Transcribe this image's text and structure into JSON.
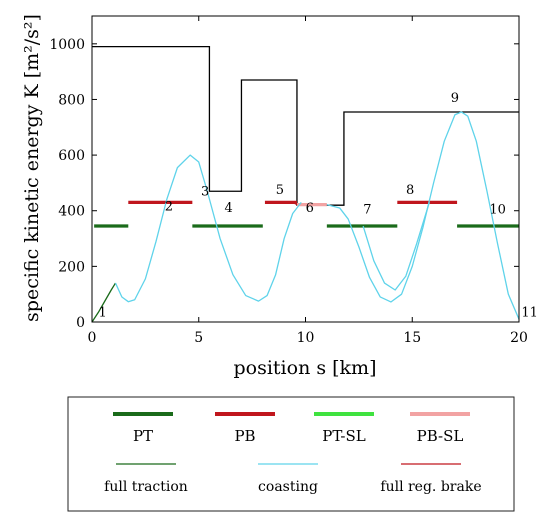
{
  "chart_data": {
    "type": "line",
    "xlabel": "position s [km]",
    "ylabel": "specific kinetic energy K [m²/s²]",
    "xlim": [
      0,
      20
    ],
    "ylim": [
      0,
      1100
    ],
    "x_ticks": [
      0,
      5,
      10,
      15,
      20
    ],
    "y_ticks": [
      0,
      200,
      400,
      600,
      800,
      1000
    ],
    "x_tick_labels": [
      "0",
      "5",
      "10",
      "15",
      "20"
    ],
    "y_tick_labels": [
      "0",
      "200",
      "400",
      "600",
      "800",
      "1000"
    ],
    "grid": false,
    "legend_placement": "below",
    "speed_limit_profile": {
      "color": "#000000",
      "points": [
        [
          0,
          990
        ],
        [
          5.5,
          990
        ],
        [
          5.5,
          470
        ],
        [
          7.0,
          470
        ],
        [
          7.0,
          870
        ],
        [
          9.6,
          870
        ],
        [
          9.6,
          420
        ],
        [
          11.8,
          420
        ],
        [
          11.8,
          755
        ],
        [
          20,
          755
        ]
      ]
    },
    "segments": [
      {
        "type": "PT",
        "color": "#1a6b1a",
        "x0": 0.1,
        "x1": 1.7,
        "y": 345
      },
      {
        "type": "PB",
        "color": "#c0161d",
        "x0": 1.7,
        "x1": 4.7,
        "y": 430
      },
      {
        "type": "PT",
        "color": "#1a6b1a",
        "x0": 4.7,
        "x1": 8.0,
        "y": 345
      },
      {
        "type": "PB",
        "color": "#c0161d",
        "x0": 8.1,
        "x1": 9.6,
        "y": 430
      },
      {
        "type": "PB-SL",
        "color": "#f2a3a3",
        "x0": 9.6,
        "x1": 11.0,
        "y": 422
      },
      {
        "type": "PT",
        "color": "#1a6b1a",
        "x0": 11.0,
        "x1": 14.3,
        "y": 345
      },
      {
        "type": "PB",
        "color": "#c0161d",
        "x0": 14.3,
        "x1": 17.1,
        "y": 430
      },
      {
        "type": "PT",
        "color": "#1a6b1a",
        "x0": 17.1,
        "x1": 20.0,
        "y": 345
      }
    ],
    "series": [
      {
        "mode": "full traction",
        "color": "#1a6b1a",
        "x": [
          0,
          0.3,
          0.6,
          0.9,
          1.1
        ],
        "y": [
          0,
          35,
          75,
          115,
          140
        ]
      },
      {
        "mode": "coasting",
        "color": "#5fd3ea",
        "x": [
          1.1,
          1.4,
          1.7,
          2.0,
          2.5,
          3.0,
          3.5,
          4.0,
          4.6,
          5.0,
          5.4,
          6.0,
          6.6,
          7.2,
          7.8,
          8.2,
          8.6,
          9.0,
          9.4,
          9.8
        ],
        "y": [
          140,
          90,
          73,
          80,
          155,
          290,
          440,
          555,
          600,
          575,
          470,
          300,
          170,
          95,
          75,
          95,
          170,
          300,
          390,
          430
        ]
      },
      {
        "mode": "coasting",
        "color": "#5fd3ea",
        "x": [
          11.0,
          11.6,
          12.0,
          12.5,
          13.0,
          13.5,
          14.0,
          14.5,
          15.0,
          15.5,
          16.0,
          16.5,
          17.0,
          17.3,
          17.6,
          18.0,
          18.5,
          19.0,
          19.5,
          20.0
        ],
        "y": [
          422,
          410,
          370,
          270,
          160,
          90,
          72,
          100,
          200,
          340,
          500,
          650,
          745,
          755,
          740,
          650,
          470,
          280,
          100,
          10
        ]
      },
      {
        "mode": "coasting",
        "color": "#5fd3ea",
        "x": [
          12.7,
          13.2,
          13.7,
          14.2,
          14.7,
          15.2,
          15.8
        ],
        "y": [
          345,
          220,
          140,
          115,
          165,
          280,
          430
        ]
      },
      {
        "mode": "full reg. brake",
        "color": "#c0161d",
        "x": [
          9.4,
          9.6
        ],
        "y": [
          430,
          422
        ]
      }
    ],
    "point_labels": [
      {
        "label": "1",
        "x": 0.5,
        "y": 20
      },
      {
        "label": "2",
        "x": 3.6,
        "y": 400
      },
      {
        "label": "3",
        "x": 5.3,
        "y": 455
      },
      {
        "label": "4",
        "x": 6.4,
        "y": 395
      },
      {
        "label": "5",
        "x": 8.8,
        "y": 460
      },
      {
        "label": "6",
        "x": 10.2,
        "y": 395
      },
      {
        "label": "7",
        "x": 12.9,
        "y": 390
      },
      {
        "label": "8",
        "x": 14.9,
        "y": 460
      },
      {
        "label": "9",
        "x": 17.0,
        "y": 790
      },
      {
        "label": "10",
        "x": 19.0,
        "y": 390
      },
      {
        "label": "11",
        "x": 20.5,
        "y": 20
      }
    ],
    "legend": {
      "row1": [
        {
          "label": "PT",
          "color": "#1a6b1a"
        },
        {
          "label": "PB",
          "color": "#c0161d"
        },
        {
          "label": "PT-SL",
          "color": "#3fe23f"
        },
        {
          "label": "PB-SL",
          "color": "#f2a3a3"
        }
      ],
      "row2": [
        {
          "label": "full traction",
          "color": "#1a6b1a"
        },
        {
          "label": "coasting",
          "color": "#5fd3ea"
        },
        {
          "label": "full reg. brake",
          "color": "#c0161d"
        }
      ]
    }
  }
}
